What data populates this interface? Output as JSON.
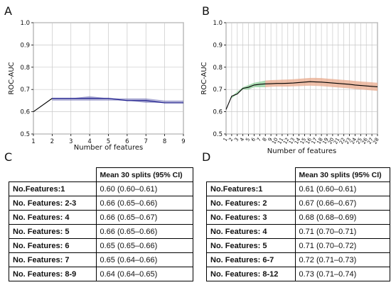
{
  "panels": {
    "a": "A",
    "b": "B",
    "c": "C",
    "d": "D"
  },
  "chart_data": [
    {
      "type": "line",
      "ylabel": "ROC-AUC",
      "xlabel": "Number of features",
      "ylim": [
        0.5,
        1.0
      ],
      "yticks": [
        "0.5",
        "0.6",
        "0.7",
        "0.8",
        "0.9",
        "1.0"
      ],
      "x": [
        1,
        2,
        3,
        4,
        5,
        6,
        7,
        8,
        9
      ],
      "xticks": [
        "1",
        "2",
        "3",
        "4",
        "5",
        "6",
        "7",
        "8",
        "9"
      ],
      "values": [
        0.6,
        0.66,
        0.66,
        0.66,
        0.66,
        0.65,
        0.65,
        0.64,
        0.64
      ],
      "ci_low": [
        0.6,
        0.65,
        0.65,
        0.65,
        0.65,
        0.65,
        0.64,
        0.64,
        0.64
      ],
      "ci_high": [
        0.61,
        0.66,
        0.66,
        0.67,
        0.66,
        0.66,
        0.66,
        0.65,
        0.65
      ],
      "grid": true,
      "colors": {
        "line_start": "#000000",
        "line_main": "#1a1a8c",
        "band": "#6a6ab0"
      }
    },
    {
      "type": "line",
      "ylabel": "ROC-AUC",
      "xlabel": "Number of features",
      "ylim": [
        0.5,
        1.0
      ],
      "yticks": [
        "0.5",
        "0.6",
        "0.7",
        "0.8",
        "0.9",
        "1.0"
      ],
      "x": [
        1,
        2,
        3,
        4,
        5,
        6,
        7,
        8,
        9,
        10,
        11,
        12,
        13,
        14,
        15,
        16,
        17,
        18,
        19,
        20,
        21,
        22,
        23,
        24,
        25,
        26,
        27,
        28
      ],
      "xticks": [
        "1",
        "2",
        "3",
        "4",
        "5",
        "6",
        "7",
        "8",
        "9",
        "10",
        "11",
        "12",
        "13",
        "14",
        "15",
        "16",
        "17",
        "18",
        "19",
        "20",
        "21",
        "22",
        "23",
        "24",
        "25",
        "26",
        "27",
        "28"
      ],
      "values": [
        0.61,
        0.67,
        0.68,
        0.705,
        0.71,
        0.72,
        0.723,
        0.725,
        0.726,
        0.727,
        0.727,
        0.728,
        0.729,
        0.731,
        0.733,
        0.735,
        0.734,
        0.733,
        0.731,
        0.729,
        0.727,
        0.725,
        0.723,
        0.72,
        0.718,
        0.716,
        0.714,
        0.712
      ],
      "ci_low": [
        0.6,
        0.66,
        0.68,
        0.7,
        0.7,
        0.71,
        0.71,
        0.71,
        0.712,
        0.713,
        0.713,
        0.713,
        0.714,
        0.715,
        0.716,
        0.717,
        0.716,
        0.715,
        0.713,
        0.711,
        0.709,
        0.707,
        0.705,
        0.702,
        0.7,
        0.698,
        0.696,
        0.694
      ],
      "ci_high": [
        0.61,
        0.67,
        0.69,
        0.71,
        0.72,
        0.73,
        0.735,
        0.74,
        0.742,
        0.743,
        0.744,
        0.745,
        0.746,
        0.748,
        0.75,
        0.752,
        0.752,
        0.751,
        0.749,
        0.747,
        0.745,
        0.743,
        0.741,
        0.738,
        0.736,
        0.734,
        0.732,
        0.73
      ],
      "green_until": 8,
      "grid": true,
      "colors": {
        "line": "#000000",
        "band_green": "#8fcf9a",
        "band_salmon": "#e8a98c"
      }
    }
  ],
  "tables": {
    "c": {
      "header": "Mean 30 splits (95% CI)",
      "rows": [
        {
          "label": "No.Features:1",
          "value": "0.60 (0.60–0.61)"
        },
        {
          "label": "No. Features: 2-3",
          "value": "0.66 (0.65–0.66)"
        },
        {
          "label": "No. Features: 4",
          "value": "0.66 (0.65–0.67)"
        },
        {
          "label": "No. Features: 5",
          "value": "0.66 (0.65–0.66)"
        },
        {
          "label": "No. Features: 6",
          "value": "0.65 (0.65–0.66)"
        },
        {
          "label": "No. Features: 7",
          "value": "0.65 (0.64–0.66)"
        },
        {
          "label": "No. Features: 8-9",
          "value": "0.64 (0.64–0.65)"
        }
      ]
    },
    "d": {
      "header": "Mean 30 splits (95% CI)",
      "rows": [
        {
          "label": "No.Features:1",
          "value": "0.61 (0.60–0.61)"
        },
        {
          "label": "No. Features: 2",
          "value": "0.67 (0.66–0.67)"
        },
        {
          "label": "No. Features: 3",
          "value": "0.68 (0.68–0.69)"
        },
        {
          "label": "No. Features: 4",
          "value": "0.71 (0.70–0.71)"
        },
        {
          "label": "No. Features: 5",
          "value": "0.71 (0.70–0.72)"
        },
        {
          "label": "No. Features: 6-7",
          "value": "0.72 (0.71–0.73)"
        },
        {
          "label": "No. Features: 8-12",
          "value": "0.73 (0.71–0.74)"
        }
      ]
    }
  }
}
